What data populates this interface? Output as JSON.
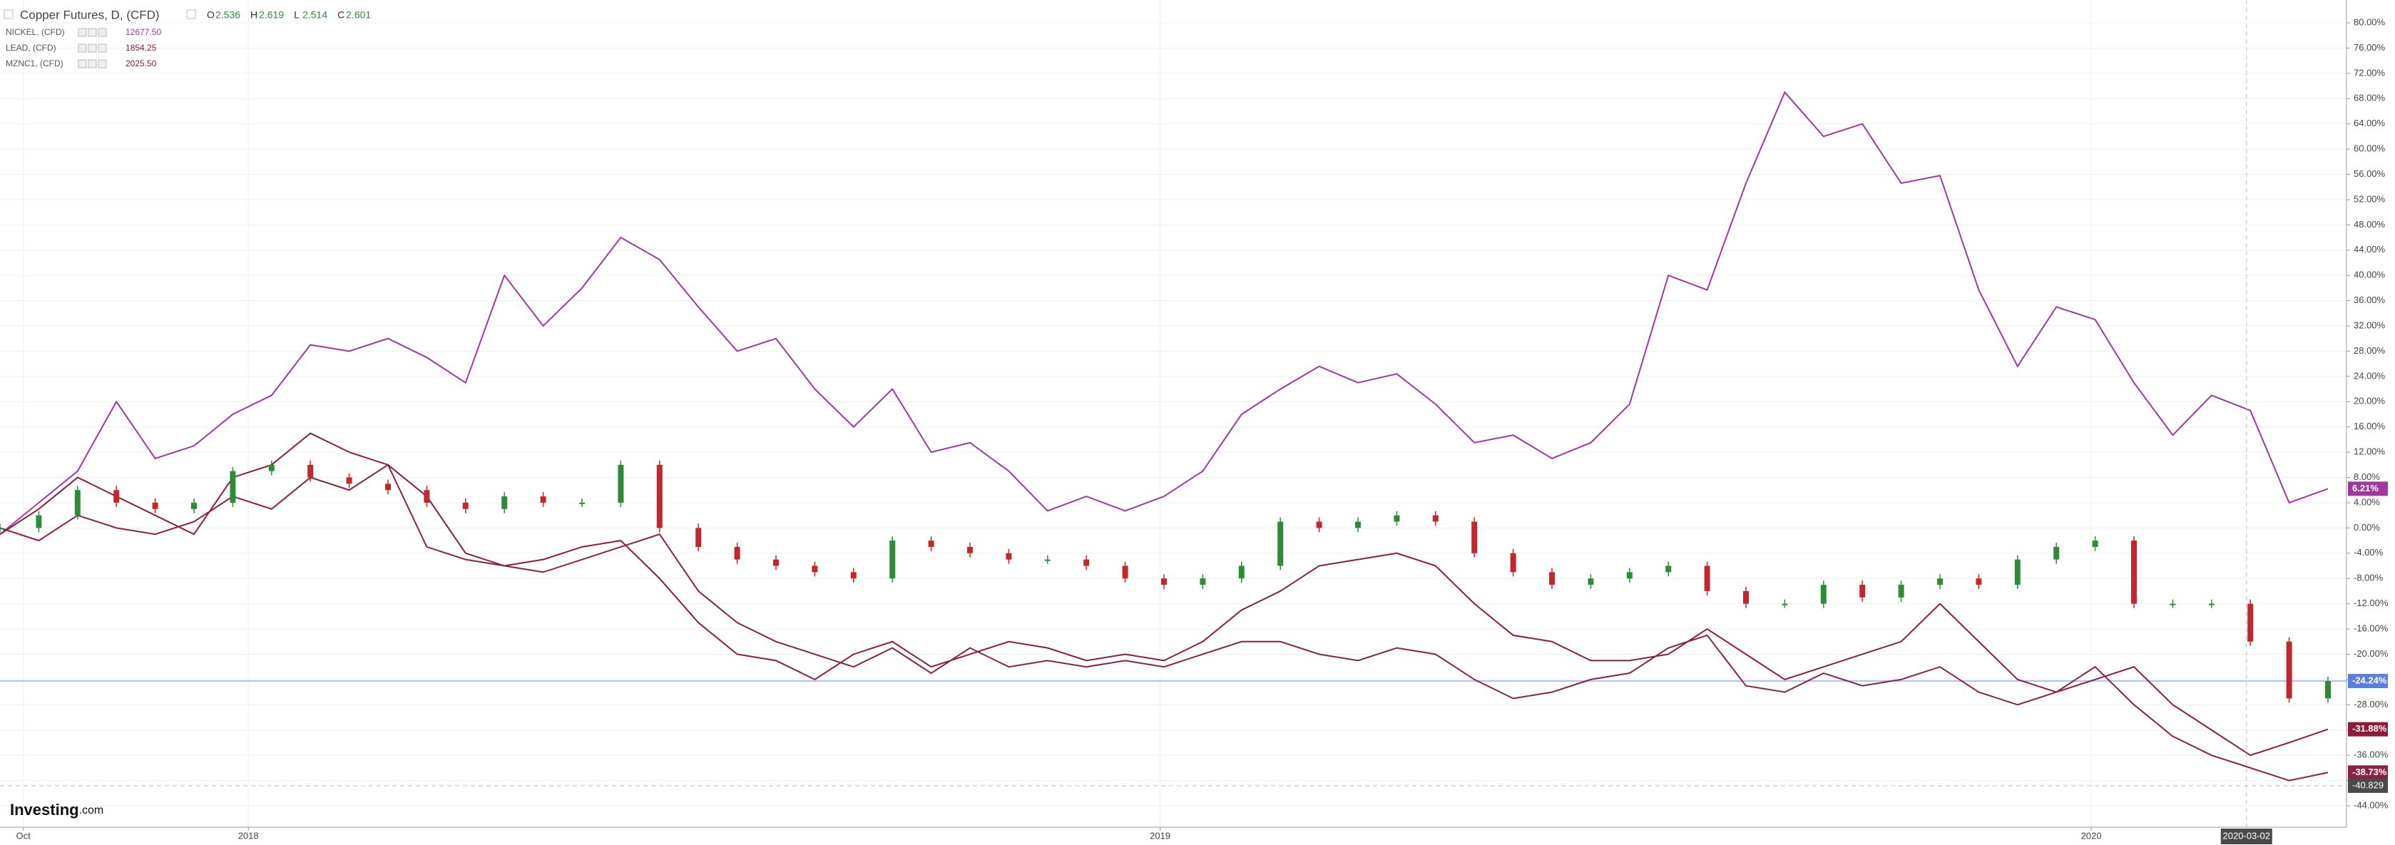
{
  "chart_data": {
    "type": "line",
    "header": {
      "title": "Copper Futures, D, (CFD)",
      "ohlc": [
        {
          "label": "O",
          "value": "2.536"
        },
        {
          "label": "H",
          "value": "2.619"
        },
        {
          "label": "L",
          "value": "2.514"
        },
        {
          "label": "C",
          "value": "2.601"
        }
      ]
    },
    "legend_rows": [
      {
        "name": "NICKEL, (CFD)",
        "value": "12677.50",
        "color": "#a0399e"
      },
      {
        "name": "LEAD, (CFD)",
        "value": "1854.25",
        "color": "#8e1b3e"
      },
      {
        "name": "MZNC1, (CFD)",
        "value": "2025.50",
        "color": "#8e1b3e"
      }
    ],
    "xlim": [
      0,
      60
    ],
    "xticks": [
      {
        "value": 0.6,
        "label": "Oct"
      },
      {
        "value": 6.4,
        "label": "2018"
      },
      {
        "value": 29.9,
        "label": "2019"
      },
      {
        "value": 53.9,
        "label": "2020"
      }
    ],
    "ylim": [
      -44,
      80
    ],
    "yticks": [
      {
        "value": 80,
        "label": "80.00%"
      },
      {
        "value": 76,
        "label": "76.00%"
      },
      {
        "value": 72,
        "label": "72.00%"
      },
      {
        "value": 68,
        "label": "68.00%"
      },
      {
        "value": 64,
        "label": "64.00%"
      },
      {
        "value": 60,
        "label": "60.00%"
      },
      {
        "value": 56,
        "label": "56.00%"
      },
      {
        "value": 52,
        "label": "52.00%"
      },
      {
        "value": 48,
        "label": "48.00%"
      },
      {
        "value": 44,
        "label": "44.00%"
      },
      {
        "value": 40,
        "label": "40.00%"
      },
      {
        "value": 36,
        "label": "36.00%"
      },
      {
        "value": 32,
        "label": "32.00%"
      },
      {
        "value": 28,
        "label": "28.00%"
      },
      {
        "value": 24,
        "label": "24.00%"
      },
      {
        "value": 20,
        "label": "20.00%"
      },
      {
        "value": 16,
        "label": "16.00%"
      },
      {
        "value": 12,
        "label": "12.00%"
      },
      {
        "value": 8,
        "label": "8.00%"
      },
      {
        "value": 4,
        "label": "4.00%"
      },
      {
        "value": 0,
        "label": "0.00%"
      },
      {
        "value": -4,
        "label": "-4.00%"
      },
      {
        "value": -8,
        "label": "-8.00%"
      },
      {
        "value": -12,
        "label": "-12.00%"
      },
      {
        "value": -16,
        "label": "-16.00%"
      },
      {
        "value": -20,
        "label": "-20.00%"
      },
      {
        "value": -24,
        "label": "-24.00%"
      },
      {
        "value": -28,
        "label": "-28.00%"
      },
      {
        "value": -32,
        "label": "-32.00%"
      },
      {
        "value": -36,
        "label": "-36.00%"
      },
      {
        "value": -40,
        "label": "-40.00%"
      },
      {
        "value": -44,
        "label": "-44.00%"
      }
    ],
    "grid": true,
    "series": [
      {
        "name": "NICKEL",
        "color": "#a0399e",
        "style": "line",
        "last_label": "6.21%",
        "values": [
          -1,
          4,
          9,
          20,
          11,
          13,
          18,
          21,
          29,
          28,
          30,
          27,
          23,
          40,
          32,
          38,
          46,
          42.5,
          35,
          28,
          30,
          22,
          16,
          22,
          12,
          13.5,
          9,
          2.7,
          5,
          2.7,
          5,
          9,
          18,
          22,
          25.6,
          23,
          24.4,
          19.6,
          13.5,
          14.7,
          11,
          13.5,
          19.6,
          40,
          37.7,
          54.6,
          69,
          62,
          64,
          54.6,
          55.8,
          37.7,
          25.6,
          35,
          33,
          23,
          14.7,
          21,
          18.6,
          4,
          6.21
        ]
      },
      {
        "name": "LEAD",
        "color": "#8e1b3e",
        "style": "line",
        "last_label": "-31.88%",
        "values": [
          -1,
          3,
          8,
          5,
          2,
          -1,
          8,
          10,
          15,
          12,
          10,
          5,
          -4,
          -6,
          -5,
          -3,
          -2,
          -8,
          -15,
          -20,
          -21,
          -24,
          -20,
          -18,
          -22,
          -20,
          -18,
          -19,
          -21,
          -20,
          -21,
          -18,
          -13,
          -10,
          -6,
          -5,
          -4,
          -6,
          -12,
          -17,
          -18,
          -21,
          -21,
          -20,
          -16,
          -20,
          -24,
          -22,
          -20,
          -18,
          -12,
          -18,
          -24,
          -26,
          -24,
          -22,
          -28,
          -32,
          -36,
          -34,
          -31.88
        ]
      },
      {
        "name": "MZNC1",
        "color": "#8b2242",
        "style": "line",
        "last_label": "-38.73%",
        "values": [
          0,
          -2,
          2,
          0,
          -1,
          1,
          5,
          3,
          8,
          6,
          10,
          -3,
          -5,
          -6,
          -7,
          -5,
          -3,
          -1,
          -10,
          -15,
          -18,
          -20,
          -22,
          -19,
          -23,
          -19,
          -22,
          -21,
          -22,
          -21,
          -22,
          -20,
          -18,
          -18,
          -20,
          -21,
          -19,
          -20,
          -24,
          -27,
          -26,
          -24,
          -23,
          -19,
          -17,
          -25,
          -26,
          -23,
          -25,
          -24,
          -22,
          -26,
          -28,
          -26,
          -22,
          -28,
          -33,
          -36,
          -38,
          -40,
          -38.73
        ]
      },
      {
        "name": "Copper Futures",
        "color": "#5b7fde",
        "style": "candle",
        "last_label": "-24.24%",
        "values": [
          0,
          2,
          6,
          4,
          3,
          4,
          9,
          10,
          8,
          7,
          6,
          4,
          3,
          5,
          4,
          4,
          10,
          0,
          -3,
          -5,
          -6,
          -7,
          -8,
          -2,
          -3,
          -4,
          -5,
          -5,
          -6,
          -8,
          -9,
          -8,
          -6,
          1,
          0,
          1,
          2,
          1,
          -4,
          -7,
          -9,
          -8,
          -7,
          -6,
          -10,
          -12,
          -12,
          -9,
          -11,
          -9,
          -8,
          -9,
          -5,
          -3,
          -2,
          -12,
          -12,
          -12,
          -18,
          -27,
          -24.24
        ]
      }
    ],
    "up_color": "#2e8b3a",
    "down_color": "#c4262e",
    "crosshair": {
      "x": {
        "value": 57.9,
        "label": "2020-03-02"
      },
      "y": -40.829
    },
    "logo": "Investing",
    "logo_suffix": ".com"
  }
}
